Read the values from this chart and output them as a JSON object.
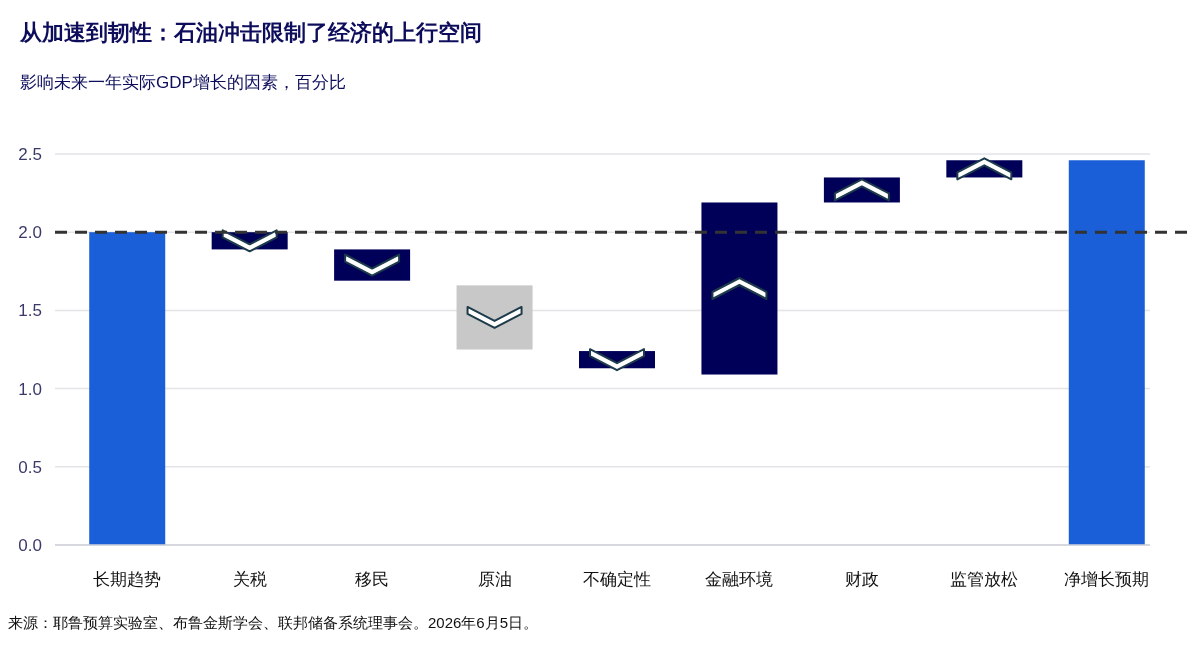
{
  "chart_data": {
    "type": "bar",
    "title": "从加速到韧性：石油冲击限制了经济的上行空间",
    "subtitle": "影响未来一年实际GDP增长的因素，百分比",
    "categories": [
      "长期趋势",
      "关税",
      "移民",
      "原油",
      "不确定性",
      "金融环境",
      "财政",
      "监管放松",
      "净增长预期"
    ],
    "base": [
      0,
      2.0,
      1.89,
      1.66,
      1.24,
      1.09,
      2.19,
      2.35,
      0
    ],
    "values": [
      2.0,
      -0.11,
      -0.2,
      -0.41,
      -0.11,
      1.1,
      0.16,
      0.11,
      2.46
    ],
    "colors": [
      "#1a5fd8",
      "#000058",
      "#000058",
      "#c8c8c8",
      "#000058",
      "#000058",
      "#000058",
      "#000058",
      "#1a5fd8"
    ],
    "ylim": [
      0,
      2.5
    ],
    "yticks": [
      {
        "value": 0,
        "label": "0.0"
      },
      {
        "value": 0.5,
        "label": "0.5"
      },
      {
        "value": 1,
        "label": "1.0"
      },
      {
        "value": 1.5,
        "label": "1.5"
      },
      {
        "value": 2,
        "label": "2.0"
      },
      {
        "value": 2.5,
        "label": "2.5"
      }
    ],
    "grid": "y",
    "ref_lines": [
      {
        "axis": "y",
        "value": 2.0,
        "color": "#333333",
        "line_style": "dashed"
      }
    ],
    "annotations": [
      "来源：耶鲁预算实验室、布鲁金斯学会、联邦储备系统理事会。2026年6月5日。"
    ]
  }
}
